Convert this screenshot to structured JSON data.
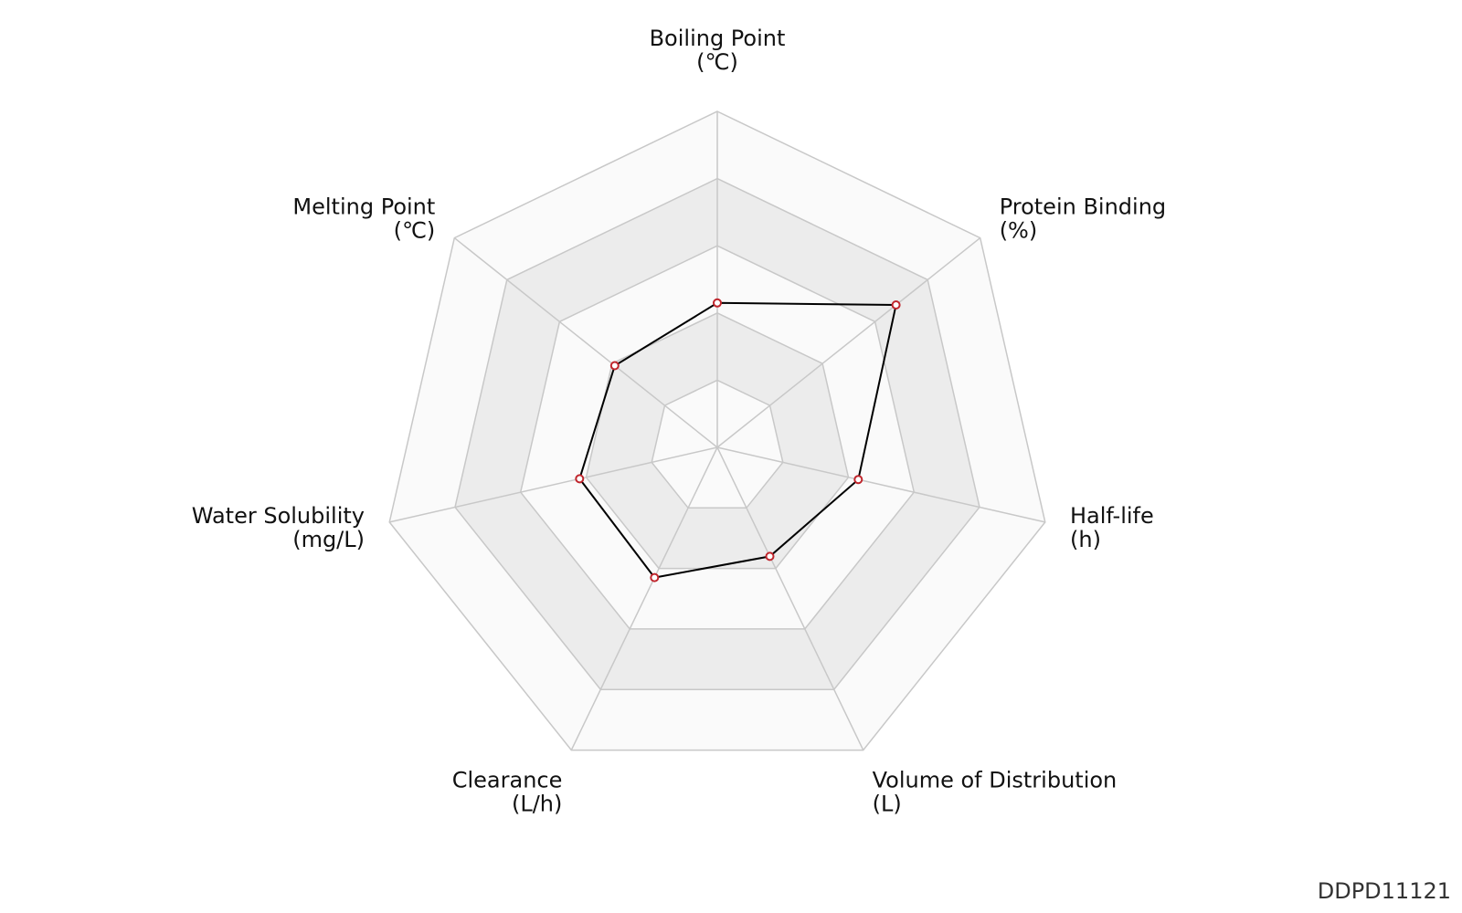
{
  "chart_data": {
    "type": "radar",
    "axes": [
      {
        "name": "Boiling Point",
        "unit": "(℃)"
      },
      {
        "name": "Protein Binding",
        "unit": "(%)"
      },
      {
        "name": "Half-life",
        "unit": "(h)"
      },
      {
        "name": "Volume of Distribution",
        "unit": "(L)"
      },
      {
        "name": "Clearance",
        "unit": "(L/h)"
      },
      {
        "name": "Water Solubility",
        "unit": "(mg/L)"
      },
      {
        "name": "Melting Point",
        "unit": "(℃)"
      }
    ],
    "rings": 5,
    "scale": [
      0,
      1
    ],
    "series": [
      {
        "values": [
          0.43,
          0.68,
          0.43,
          0.36,
          0.43,
          0.42,
          0.39
        ]
      }
    ],
    "colors": {
      "grid_line": "#c8c8c8",
      "band_light": "#fafafa",
      "band_dark": "#ececec",
      "series_line": "#000000",
      "marker_edge": "#c0262d",
      "marker_fill": "#ffffff"
    }
  },
  "figure_id": "DDPD11121"
}
